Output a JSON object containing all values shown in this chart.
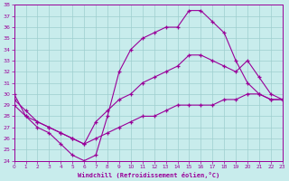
{
  "xlabel": "Windchill (Refroidissement éolien,°C)",
  "xlim": [
    0,
    23
  ],
  "ylim": [
    24,
    38
  ],
  "yticks": [
    24,
    25,
    26,
    27,
    28,
    29,
    30,
    31,
    32,
    33,
    34,
    35,
    36,
    37,
    38
  ],
  "xticks": [
    0,
    1,
    2,
    3,
    4,
    5,
    6,
    7,
    8,
    9,
    10,
    11,
    12,
    13,
    14,
    15,
    16,
    17,
    18,
    19,
    20,
    21,
    22,
    23
  ],
  "bg_color": "#c8ecec",
  "line_color": "#990099",
  "grid_color": "#9ecece",
  "line1_x": [
    0,
    1,
    2,
    3,
    4,
    5,
    6,
    7,
    8,
    9,
    10,
    11,
    12,
    13,
    14,
    15,
    16,
    17,
    18,
    19,
    20,
    21,
    22,
    23
  ],
  "line1_y": [
    30,
    28,
    27,
    26.5,
    25.5,
    24.5,
    24,
    24.5,
    28,
    32,
    34,
    35,
    35.5,
    36,
    36,
    37.5,
    37.5,
    36.5,
    35.5,
    33,
    31,
    30,
    29.5,
    29.5
  ],
  "line2_x": [
    0,
    1,
    2,
    3,
    4,
    5,
    6,
    7,
    8,
    9,
    10,
    11,
    12,
    13,
    14,
    15,
    16,
    17,
    18,
    19,
    20,
    21,
    22,
    23
  ],
  "line2_y": [
    29.5,
    28.5,
    27.5,
    27,
    26.5,
    26,
    25.5,
    27.5,
    28.5,
    29.5,
    30,
    31,
    31.5,
    32,
    32.5,
    33.5,
    33.5,
    33,
    32.5,
    32,
    33,
    31.5,
    30,
    29.5
  ],
  "line3_x": [
    0,
    1,
    2,
    3,
    4,
    5,
    6,
    7,
    8,
    9,
    10,
    11,
    12,
    13,
    14,
    15,
    16,
    17,
    18,
    19,
    20,
    21,
    22,
    23
  ],
  "line3_y": [
    29,
    28,
    27.5,
    27,
    26.5,
    26,
    25.5,
    26,
    26.5,
    27,
    27.5,
    28,
    28,
    28.5,
    29,
    29,
    29,
    29,
    29.5,
    29.5,
    30,
    30,
    29.5,
    29.5
  ]
}
